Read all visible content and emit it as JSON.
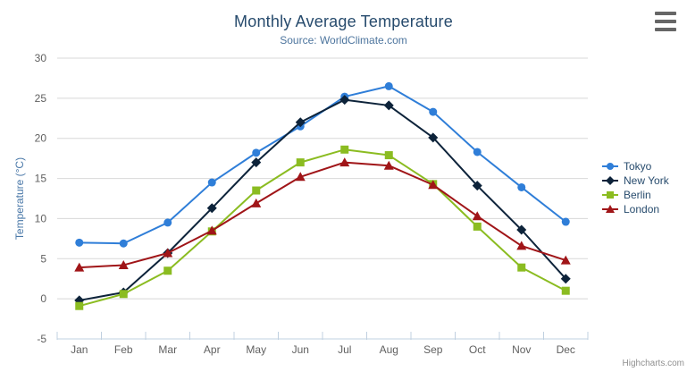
{
  "chart_data": {
    "type": "line",
    "title": "Monthly Average Temperature",
    "subtitle": "Source: WorldClimate.com",
    "categories": [
      "Jan",
      "Feb",
      "Mar",
      "Apr",
      "May",
      "Jun",
      "Jul",
      "Aug",
      "Sep",
      "Oct",
      "Nov",
      "Dec"
    ],
    "xlabel": "",
    "ylabel": "Temperature (°C)",
    "ylim": [
      -5,
      30
    ],
    "yticks": [
      -5,
      0,
      5,
      10,
      15,
      20,
      25,
      30
    ],
    "grid": true,
    "legend_position": "right",
    "series": [
      {
        "name": "Tokyo",
        "color": "#2f7ed8",
        "marker": "circle",
        "values": [
          7.0,
          6.9,
          9.5,
          14.5,
          18.2,
          21.5,
          25.2,
          26.5,
          23.3,
          18.3,
          13.9,
          9.6
        ]
      },
      {
        "name": "New York",
        "color": "#0d233a",
        "marker": "diamond",
        "values": [
          -0.2,
          0.8,
          5.7,
          11.3,
          17.0,
          22.0,
          24.8,
          24.1,
          20.1,
          14.1,
          8.6,
          2.5
        ]
      },
      {
        "name": "Berlin",
        "color": "#8bbc21",
        "marker": "square",
        "values": [
          -0.9,
          0.6,
          3.5,
          8.4,
          13.5,
          17.0,
          18.6,
          17.9,
          14.3,
          9.0,
          3.9,
          1.0
        ]
      },
      {
        "name": "London",
        "color": "#a01518",
        "marker": "triangle",
        "values": [
          3.9,
          4.2,
          5.7,
          8.5,
          11.9,
          15.2,
          17.0,
          16.6,
          14.2,
          10.3,
          6.6,
          4.8
        ]
      }
    ]
  },
  "credits": {
    "label": "Highcharts.com"
  },
  "context_menu": {
    "icon": "hamburger-icon"
  },
  "theme": {
    "title_color": "#274b6d",
    "subtitle_color": "#4d759e",
    "axis_label_color": "#606060",
    "axis_title_color": "#4a78a8",
    "grid_color": "#d8d8d8",
    "axis_line_color": "#c0d0e0",
    "legend_text_color": "#274b6d",
    "credits_color": "#909090",
    "menu_icon_color": "#666666"
  }
}
